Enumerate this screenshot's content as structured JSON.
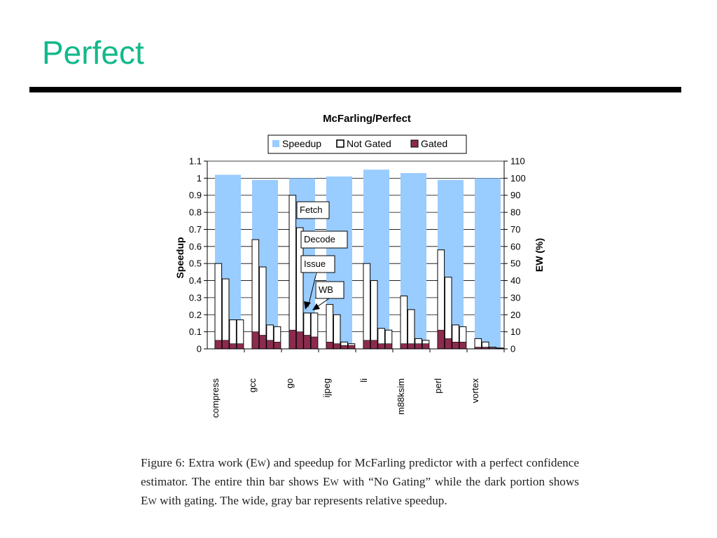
{
  "slide": {
    "title": "Perfect"
  },
  "chart_data": {
    "type": "bar",
    "title": "McFarling/Perfect",
    "ylabel": "Speedup",
    "y2label": "EW (%)",
    "xlabel": "",
    "ylim": [
      0,
      1.1
    ],
    "y2lim": [
      0,
      110
    ],
    "yticks": [
      "0",
      "0.1",
      "0.2",
      "0.3",
      "0.4",
      "0.5",
      "0.6",
      "0.7",
      "0.8",
      "0.9",
      "1",
      "1.1"
    ],
    "y2ticks": [
      "0",
      "10",
      "20",
      "30",
      "40",
      "50",
      "60",
      "70",
      "80",
      "90",
      "100",
      "110"
    ],
    "grid": true,
    "legend_position": "top-center",
    "legend": [
      {
        "label": "Speedup",
        "color": "#99ccff",
        "style": "fill"
      },
      {
        "label": "Not Gated",
        "color": "#ffffff",
        "style": "outline"
      },
      {
        "label": "Gated",
        "color": "#8b2b4e",
        "style": "fill"
      }
    ],
    "categories": [
      "compress",
      "gcc",
      "go",
      "ijpeg",
      "li",
      "m88ksim",
      "perl",
      "vortex"
    ],
    "stage_labels": [
      "Fetch",
      "Decode",
      "Issue",
      "WB"
    ],
    "series": [
      {
        "name": "Speedup",
        "axis": "left",
        "values": [
          1.02,
          0.99,
          1.0,
          1.01,
          1.05,
          1.03,
          0.99,
          1.0
        ]
      },
      {
        "name": "Not Gated",
        "axis": "right",
        "values": [
          [
            50,
            41,
            17,
            17
          ],
          [
            64,
            48,
            14,
            13
          ],
          [
            90,
            71,
            21,
            21
          ],
          [
            26,
            20,
            4,
            3
          ],
          [
            50,
            40,
            12,
            11
          ],
          [
            31,
            23,
            6,
            5
          ],
          [
            58,
            42,
            14,
            13
          ],
          [
            6,
            4,
            1,
            0.5
          ]
        ]
      },
      {
        "name": "Gated",
        "axis": "right",
        "values": [
          [
            5,
            5,
            3,
            3
          ],
          [
            10,
            8,
            5,
            4
          ],
          [
            11,
            10,
            8,
            7
          ],
          [
            4,
            3,
            2,
            2
          ],
          [
            5,
            5,
            3,
            3
          ],
          [
            3,
            3,
            3,
            3
          ],
          [
            11,
            6,
            4,
            4
          ],
          [
            1,
            1,
            0.5,
            0.3
          ]
        ]
      }
    ]
  },
  "caption": {
    "prefix": "Figure 6:  Extra work (E",
    "sc_word": "W",
    "line1_rest": ") and speedup for McFarling predictor with a perfect confidence estimator. The entire thin bar shows E",
    "line2_rest": " with “No Gating” while the dark portion shows E",
    "line3_rest": " with gating. The wide, gray bar represents relative speedup."
  }
}
